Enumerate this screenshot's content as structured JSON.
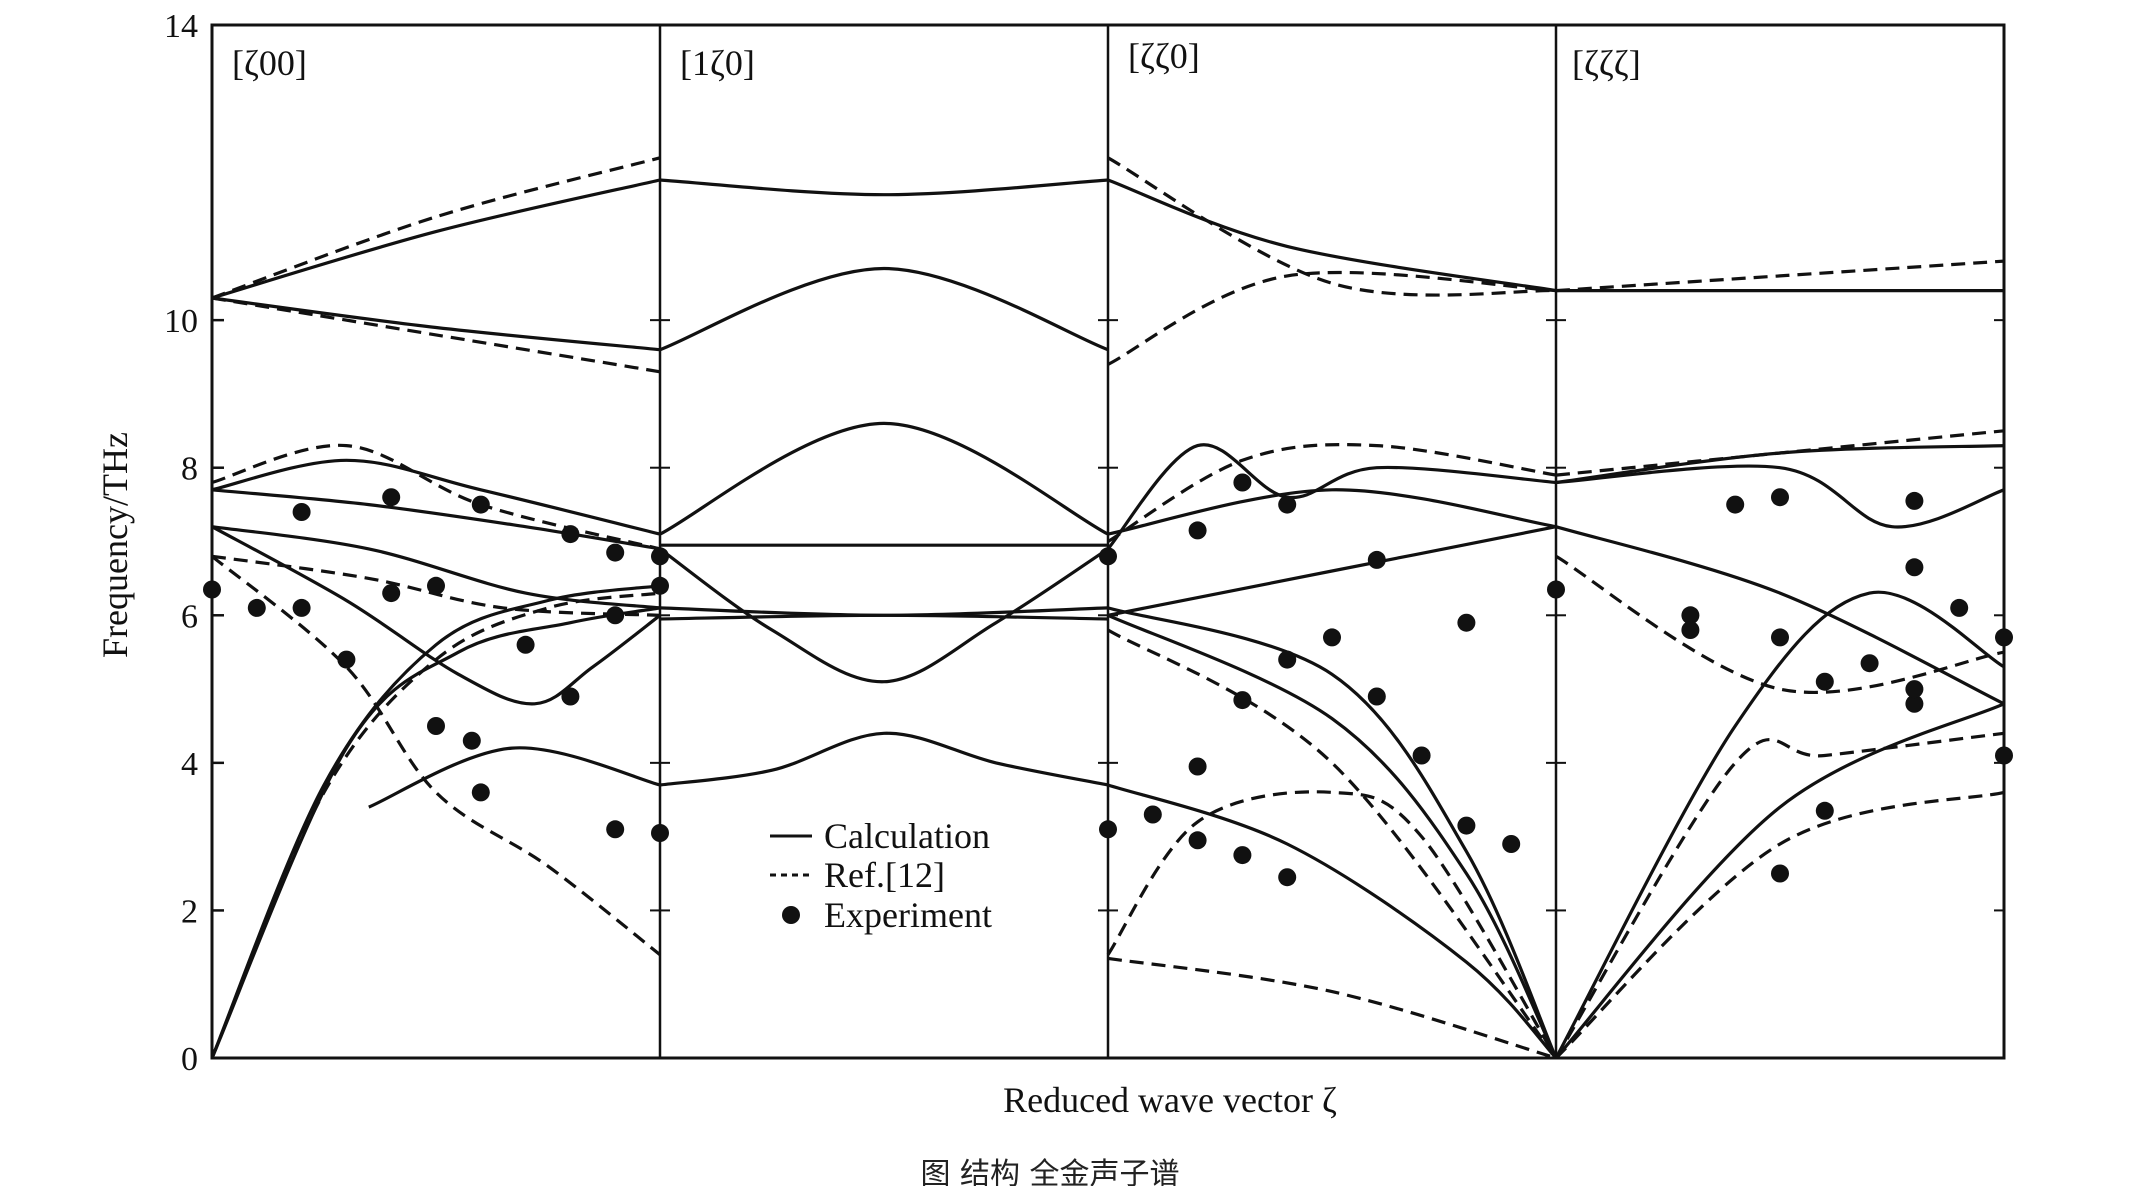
{
  "chart_data": {
    "type": "line",
    "title": "",
    "xlabel": "Reduced wave vector  ζ",
    "ylabel": "Frequency/THz",
    "ylim": [
      0,
      14
    ],
    "yticks": [
      "0",
      "2",
      "4",
      "6",
      "8",
      "10",
      "14"
    ],
    "panels": [
      "[ζ00]",
      "[1ζ0]",
      "[ζζ0]",
      "[ζζζ]"
    ],
    "legend": {
      "position": "center-left, inside second panel",
      "entries": [
        {
          "label": "Calculation",
          "style": "solid"
        },
        {
          "label": "Ref.[12]",
          "style": "dashed"
        },
        {
          "label": "Experiment",
          "style": "dots"
        }
      ]
    },
    "series": [
      {
        "name": "Calculation",
        "style": "solid",
        "curves": [
          [
            [
              0,
              0
            ],
            [
              0.25,
              3.7
            ],
            [
              0.5,
              5.6
            ],
            [
              0.75,
              6.2
            ],
            [
              1,
              6.4
            ]
          ],
          [
            [
              0,
              0
            ],
            [
              0.3,
              4.2
            ],
            [
              0.55,
              5.5
            ],
            [
              0.8,
              5.9
            ],
            [
              1,
              6.1
            ]
          ],
          [
            [
              0,
              7.2
            ],
            [
              0.35,
              6.9
            ],
            [
              0.7,
              6.3
            ],
            [
              1,
              6.1
            ]
          ],
          [
            [
              0,
              7.2
            ],
            [
              0.3,
              6.2
            ],
            [
              0.55,
              5.2
            ],
            [
              0.72,
              4.8
            ],
            [
              0.85,
              5.3
            ],
            [
              1,
              6.0
            ]
          ],
          [
            [
              0,
              7.7
            ],
            [
              0.35,
              7.5
            ],
            [
              0.7,
              7.2
            ],
            [
              1,
              6.9
            ]
          ],
          [
            [
              0,
              7.7
            ],
            [
              0.3,
              8.1
            ],
            [
              0.6,
              7.7
            ],
            [
              1,
              7.1
            ]
          ],
          [
            [
              0,
              10.3
            ],
            [
              0.5,
              11.2
            ],
            [
              1,
              11.9
            ]
          ],
          [
            [
              0,
              10.3
            ],
            [
              0.5,
              9.9
            ],
            [
              1,
              9.6
            ]
          ],
          [
            [
              0.35,
              3.4
            ],
            [
              0.67,
              4.2
            ],
            [
              1,
              3.7
            ]
          ],
          [
            [
              1,
              6.95
            ],
            [
              1.5,
              6.95
            ],
            [
              2,
              6.95
            ]
          ],
          [
            [
              1,
              7.1
            ],
            [
              1.5,
              8.6
            ],
            [
              2,
              7.1
            ]
          ],
          [
            [
              1,
              3.7
            ],
            [
              1.25,
              3.9
            ],
            [
              1.5,
              4.4
            ],
            [
              1.75,
              4.0
            ],
            [
              2,
              3.7
            ]
          ],
          [
            [
              1,
              6.9
            ],
            [
              1.25,
              5.8
            ],
            [
              1.5,
              5.1
            ],
            [
              1.75,
              5.9
            ],
            [
              2,
              6.9
            ]
          ],
          [
            [
              1,
              6.1
            ],
            [
              1.5,
              6.0
            ],
            [
              2,
              6.1
            ]
          ],
          [
            [
              1,
              5.95
            ],
            [
              1.5,
              6.0
            ],
            [
              2,
              5.95
            ]
          ],
          [
            [
              1,
              11.9
            ],
            [
              1.5,
              11.7
            ],
            [
              2,
              11.9
            ]
          ],
          [
            [
              1,
              9.6
            ],
            [
              1.5,
              10.7
            ],
            [
              2,
              9.6
            ]
          ],
          [
            [
              2,
              3.7
            ],
            [
              2.4,
              2.9
            ],
            [
              2.8,
              1.3
            ],
            [
              3,
              0
            ]
          ],
          [
            [
              2,
              6.0
            ],
            [
              2.5,
              4.6
            ],
            [
              2.8,
              2.5
            ],
            [
              3,
              0
            ]
          ],
          [
            [
              2,
              6.1
            ],
            [
              2.5,
              5.2
            ],
            [
              2.8,
              2.8
            ],
            [
              3,
              0
            ]
          ],
          [
            [
              2,
              6.9
            ],
            [
              2.2,
              8.3
            ],
            [
              2.4,
              7.6
            ],
            [
              2.6,
              8.0
            ],
            [
              3,
              7.8
            ]
          ],
          [
            [
              2,
              7.1
            ],
            [
              2.5,
              7.7
            ],
            [
              3,
              7.2
            ]
          ],
          [
            [
              2,
              6.0
            ],
            [
              2.5,
              6.6
            ],
            [
              3,
              7.2
            ]
          ],
          [
            [
              2,
              11.9
            ],
            [
              2.4,
              11.0
            ],
            [
              3,
              10.4
            ]
          ],
          [
            [
              3,
              0
            ],
            [
              3.5,
              3.4
            ],
            [
              4,
              4.8
            ]
          ],
          [
            [
              3,
              0
            ],
            [
              3.4,
              4.5
            ],
            [
              3.7,
              6.3
            ],
            [
              4,
              5.3
            ]
          ],
          [
            [
              3,
              7.2
            ],
            [
              3.5,
              6.3
            ],
            [
              4,
              4.8
            ]
          ],
          [
            [
              3,
              7.8
            ],
            [
              3.5,
              8.0
            ],
            [
              3.75,
              7.2
            ],
            [
              4,
              7.7
            ]
          ],
          [
            [
              3,
              7.8
            ],
            [
              3.5,
              8.2
            ],
            [
              4,
              8.3
            ]
          ],
          [
            [
              3,
              10.4
            ],
            [
              3.5,
              10.4
            ],
            [
              4,
              10.4
            ]
          ]
        ]
      },
      {
        "name": "Ref.[12]",
        "style": "dashed",
        "curves": [
          [
            [
              0,
              0
            ],
            [
              0.25,
              3.6
            ],
            [
              0.5,
              5.4
            ],
            [
              0.75,
              6.1
            ],
            [
              1,
              6.3
            ]
          ],
          [
            [
              0,
              6.8
            ],
            [
              0.35,
              6.5
            ],
            [
              0.65,
              6.1
            ],
            [
              1,
              6.0
            ]
          ],
          [
            [
              0,
              6.8
            ],
            [
              0.3,
              5.3
            ],
            [
              0.5,
              3.6
            ],
            [
              0.75,
              2.6
            ],
            [
              1,
              1.4
            ]
          ],
          [
            [
              0,
              7.8
            ],
            [
              0.3,
              8.3
            ],
            [
              0.6,
              7.5
            ],
            [
              1,
              6.9
            ]
          ],
          [
            [
              0,
              10.3
            ],
            [
              0.5,
              11.4
            ],
            [
              1,
              12.2
            ]
          ],
          [
            [
              0,
              10.3
            ],
            [
              0.5,
              9.8
            ],
            [
              1,
              9.3
            ]
          ],
          [
            [
              2,
              1.4
            ],
            [
              2.2,
              3.2
            ],
            [
              2.5,
              3.6
            ],
            [
              2.7,
              3.0
            ],
            [
              3,
              0
            ]
          ],
          [
            [
              2,
              5.8
            ],
            [
              2.5,
              4.0
            ],
            [
              3,
              0
            ]
          ],
          [
            [
              2,
              1.35
            ],
            [
              2.5,
              0.9
            ],
            [
              3,
              0
            ]
          ],
          [
            [
              2,
              7.0
            ],
            [
              2.3,
              8.1
            ],
            [
              2.6,
              8.3
            ],
            [
              3,
              7.9
            ]
          ],
          [
            [
              2,
              12.2
            ],
            [
              2.5,
              10.5
            ],
            [
              3,
              10.4
            ]
          ],
          [
            [
              2,
              9.4
            ],
            [
              2.4,
              10.6
            ],
            [
              3,
              10.4
            ]
          ],
          [
            [
              3,
              0
            ],
            [
              3.4,
              4.0
            ],
            [
              3.6,
              4.1
            ],
            [
              4,
              4.4
            ]
          ],
          [
            [
              3,
              0
            ],
            [
              3.5,
              2.9
            ],
            [
              4,
              3.6
            ]
          ],
          [
            [
              3,
              6.8
            ],
            [
              3.5,
              5.0
            ],
            [
              4,
              5.5
            ]
          ],
          [
            [
              3,
              7.9
            ],
            [
              3.5,
              8.2
            ],
            [
              4,
              8.5
            ]
          ],
          [
            [
              3,
              10.4
            ],
            [
              3.5,
              10.6
            ],
            [
              4,
              10.8
            ]
          ]
        ]
      },
      {
        "name": "Experiment",
        "style": "dots",
        "points": [
          [
            0,
            6.35
          ],
          [
            0.1,
            6.1
          ],
          [
            0.2,
            6.1
          ],
          [
            0.3,
            5.4
          ],
          [
            0.5,
            4.5
          ],
          [
            0.58,
            4.3
          ],
          [
            0.6,
            3.6
          ],
          [
            0.7,
            5.6
          ],
          [
            0.8,
            4.9
          ],
          [
            0.9,
            3.1
          ],
          [
            1,
            3.05
          ],
          [
            0.2,
            7.4
          ],
          [
            0.4,
            7.6
          ],
          [
            0.6,
            7.5
          ],
          [
            0.8,
            7.1
          ],
          [
            0.9,
            6.85
          ],
          [
            1,
            6.8
          ],
          [
            0.4,
            6.3
          ],
          [
            0.5,
            6.4
          ],
          [
            0.9,
            6.0
          ],
          [
            1,
            6.4
          ],
          [
            2,
            3.1
          ],
          [
            2.1,
            3.3
          ],
          [
            2.2,
            2.95
          ],
          [
            2.3,
            2.75
          ],
          [
            2.4,
            2.45
          ],
          [
            2,
            6.8
          ],
          [
            2.2,
            7.15
          ],
          [
            2.3,
            7.8
          ],
          [
            2.4,
            7.5
          ],
          [
            2.2,
            3.95
          ],
          [
            2.3,
            4.85
          ],
          [
            2.4,
            5.4
          ],
          [
            2.5,
            5.7
          ],
          [
            2.6,
            4.9
          ],
          [
            2.7,
            4.1
          ],
          [
            2.8,
            3.15
          ],
          [
            2.9,
            2.9
          ],
          [
            2.6,
            6.75
          ],
          [
            2.8,
            5.9
          ],
          [
            3,
            6.35
          ],
          [
            3.3,
            6.0
          ],
          [
            3.3,
            5.8
          ],
          [
            3.4,
            7.5
          ],
          [
            3.5,
            7.6
          ],
          [
            3.8,
            7.55
          ],
          [
            3.8,
            6.65
          ],
          [
            3.9,
            6.1
          ],
          [
            4,
            5.7
          ],
          [
            4,
            4.1
          ],
          [
            3.5,
            5.7
          ],
          [
            3.6,
            5.1
          ],
          [
            3.7,
            5.35
          ],
          [
            3.8,
            4.8
          ],
          [
            3.8,
            5.0
          ],
          [
            3.6,
            3.35
          ],
          [
            3.5,
            2.5
          ]
        ]
      }
    ]
  },
  "caption": "图 结构 全金声子谱"
}
